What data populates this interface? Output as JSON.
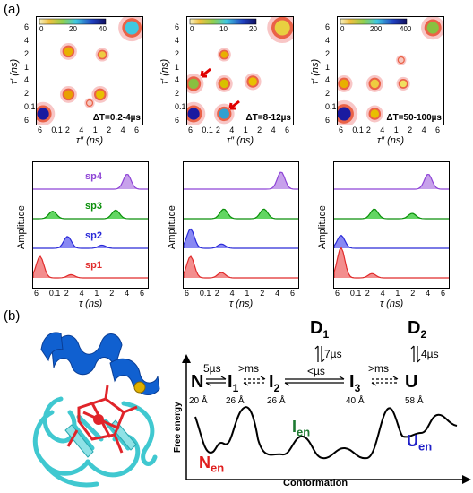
{
  "panel_a_label": "(a)",
  "panel_b_label": "(b)",
  "maps": [
    {
      "colorbar_ticks": [
        "0",
        "20",
        "40"
      ],
      "dt_label": "ΔT=0.2-4µs"
    },
    {
      "colorbar_ticks": [
        "0",
        "10",
        "20"
      ],
      "dt_label": "ΔT=8-12µs"
    },
    {
      "colorbar_ticks": [
        "0",
        "200",
        "400"
      ],
      "dt_label": "ΔT=50-100µs"
    }
  ],
  "map_y_ticks": [
    "6",
    "4",
    "2",
    "1",
    "4",
    "2",
    "0.1",
    "6"
  ],
  "map_x_ticks": [
    "6",
    "0.1",
    "2",
    "4",
    "1",
    "2",
    "4",
    "6"
  ],
  "map_xlabel": "τ″ (ns)",
  "map_ylabel": "τ′ (ns)",
  "spec_ylabel": "Amplitude",
  "spec_xlabel": "τ (ns)",
  "spec_x_ticks": [
    "6",
    "0.1",
    "2",
    "4",
    "1",
    "2",
    "4",
    "6"
  ],
  "species": [
    {
      "name": "sp4",
      "color": "#8e44d6",
      "fill": "#b98ae6"
    },
    {
      "name": "sp3",
      "color": "#0a8f0a",
      "fill": "#3ccc3c"
    },
    {
      "name": "sp2",
      "color": "#2a2ad8",
      "fill": "#6a6af0"
    },
    {
      "name": "sp1",
      "color": "#e02a2a",
      "fill": "#f07070"
    }
  ],
  "scheme": {
    "states": {
      "N": "N",
      "I1": "I",
      "I1_sub": "1",
      "I2": "I",
      "I2_sub": "2",
      "I3": "I",
      "I3_sub": "3",
      "U": "U",
      "D1": "D",
      "D1_sub": "1",
      "D2": "D",
      "D2_sub": "2"
    },
    "dists": {
      "N": "20 Å",
      "I1": "26 Å",
      "I2": "26 Å",
      "I3": "40 Å",
      "U": "58 Å"
    },
    "rates": {
      "n_i1": "5µs",
      "i1_i2": ">ms",
      "i2_i3": "<µs",
      "i3_u": ">ms",
      "d1": "7µs",
      "d2": "4µs"
    },
    "ensembles": {
      "N_main": "N",
      "N_sub": "en",
      "I_main": "I",
      "I_sub": "en",
      "U_main": "U",
      "U_sub": "en"
    },
    "ylabel": "Free energy",
    "xlabel": "Conformation"
  },
  "colors": {
    "N_en": "#e01e1e",
    "I_en": "#1e7a32",
    "U_en": "#2020c8",
    "heme": "#e0242a",
    "helix": "#1060d0",
    "sheet": "#40c8d0",
    "dot": "#e0b000"
  }
}
